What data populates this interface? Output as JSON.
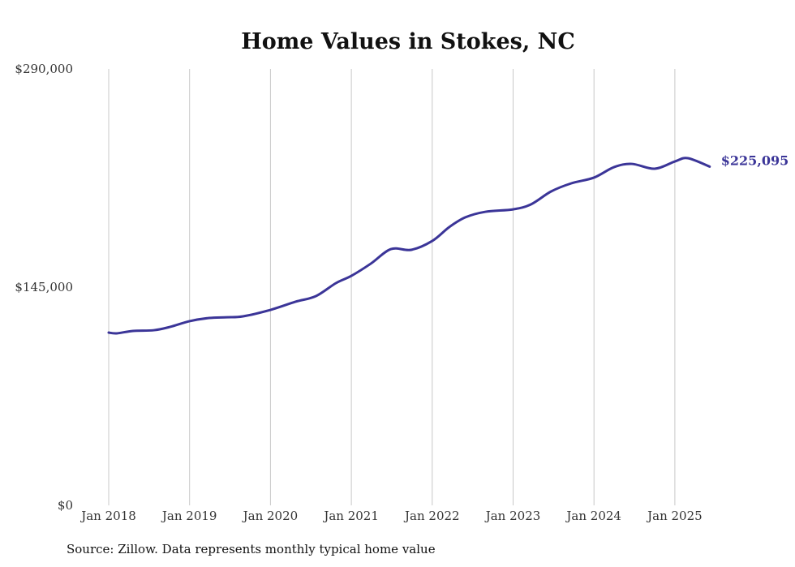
{
  "chart_data": {
    "type": "line",
    "title": "Home Values in Stokes, NC",
    "xlabel": "",
    "ylabel": "",
    "ylim": [
      0,
      290000
    ],
    "xlim": [
      2018,
      2025.45
    ],
    "y_ticks": [
      {
        "value": 0,
        "label": "$0"
      },
      {
        "value": 145000,
        "label": "$145,000"
      },
      {
        "value": 290000,
        "label": "$290,000"
      }
    ],
    "x_ticks": [
      {
        "value": 2018,
        "label": "Jan 2018"
      },
      {
        "value": 2019,
        "label": "Jan 2019"
      },
      {
        "value": 2020,
        "label": "Jan 2020"
      },
      {
        "value": 2021,
        "label": "Jan 2021"
      },
      {
        "value": 2022,
        "label": "Jan 2022"
      },
      {
        "value": 2023,
        "label": "Jan 2023"
      },
      {
        "value": 2024,
        "label": "Jan 2024"
      },
      {
        "value": 2025,
        "label": "Jan 2025"
      }
    ],
    "grid": "vertical",
    "series": [
      {
        "name": "Typical home value",
        "color": "#3b3598",
        "x": [
          2018.0,
          2018.1,
          2018.3,
          2018.56,
          2018.76,
          2019.0,
          2019.24,
          2019.46,
          2019.66,
          2020.0,
          2020.31,
          2020.56,
          2020.81,
          2021.0,
          2021.24,
          2021.49,
          2021.74,
          2022.0,
          2022.21,
          2022.41,
          2022.66,
          2023.0,
          2023.22,
          2023.47,
          2023.72,
          2024.0,
          2024.25,
          2024.47,
          2024.75,
          2025.0,
          2025.16,
          2025.43
        ],
        "values": [
          114800,
          114300,
          115900,
          116400,
          118600,
          122400,
          124500,
          125000,
          125600,
          129900,
          135300,
          139000,
          147700,
          152500,
          160600,
          170300,
          169800,
          175700,
          184900,
          191400,
          195100,
          196700,
          200000,
          208600,
          214000,
          217800,
          224800,
          226900,
          223700,
          228500,
          230700,
          225095
        ]
      }
    ],
    "end_label": "$225,095"
  },
  "source": "Source: Zillow. Data represents monthly typical home value"
}
